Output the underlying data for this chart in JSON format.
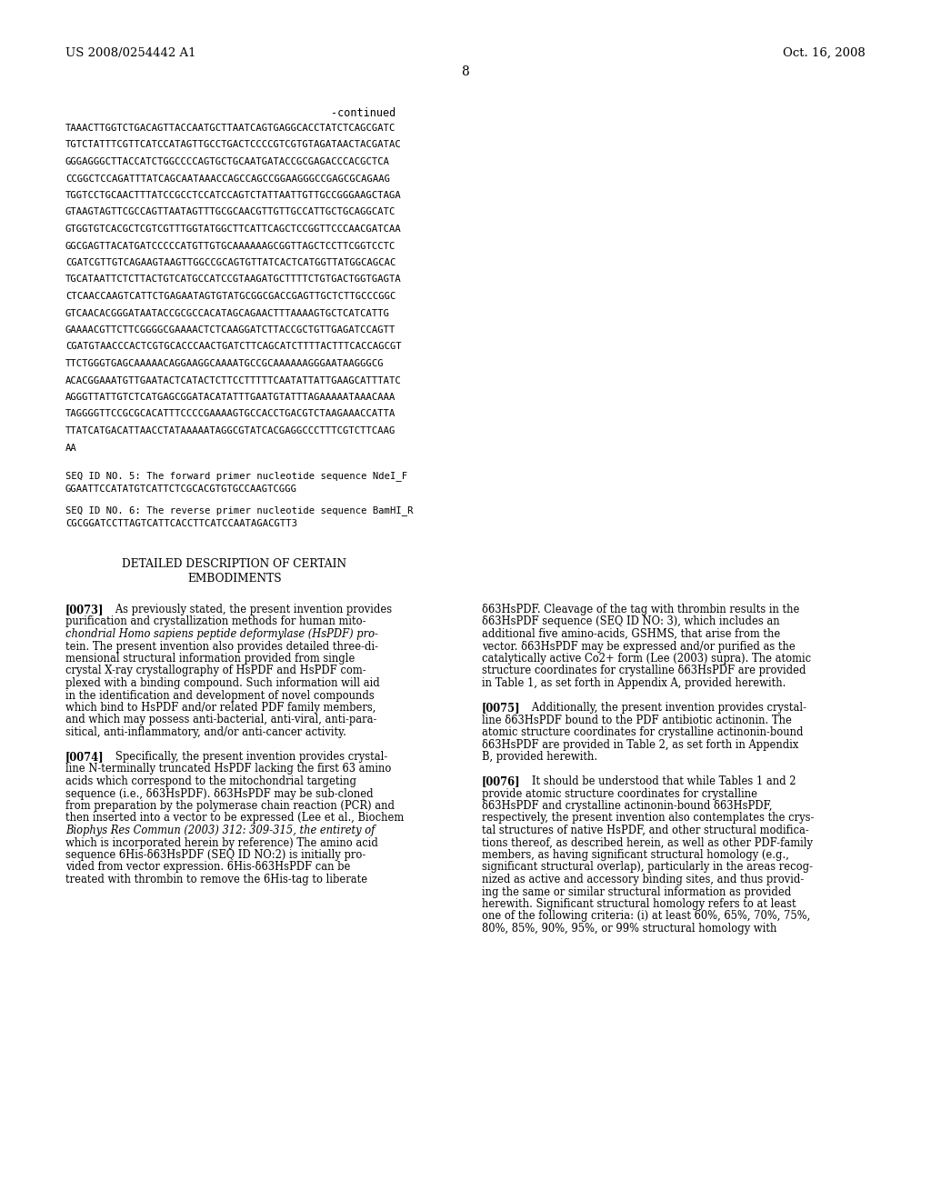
{
  "header_left": "US 2008/0254442 A1",
  "header_right": "Oct. 16, 2008",
  "page_number": "8",
  "continued_label": "-continued",
  "dna_lines": [
    "TAAACTTGGTCTGACAGTTACCAATGCTTAATCAGTGAGGCACCTATCTCAGCGATC",
    "TGTCTATTTCGTTCATCCATAGTTGCCTGACTCCCCGTCGTGTAGATAACTACGATAC",
    "GGGAGGGCTTACCATCTGGCCCCAGTGCTGCAATGATACCGCGAGACCCACGCTCA",
    "CCGGCTCCAGATTTATCAGCAATAAACCAGCCAGCCGGAAGGGCCGAGCGCAGAAG",
    "TGGTCCTGCAACTTTATCCGCCTCCATCCAGTCTATTAATTGTTGCCGGGAAGCTAGA",
    "GTAAGTAGTTCGCCAGTTAATAGTTTGCGCAACGTTGTTGCCATTGCTGCAGGCATC",
    "GTGGTGTCACGCTCGTCGTTTGGTATGGCTTCATTCAGCTCCGGTTCCCAACGATCAA",
    "GGCGAGTTACATGATCCCCCATGTTGTGCAAAAAAGCGGTTAGCTCCTTCGGTCCTC",
    "CGATCGTTGTCAGAAGTAAGTTGGCCGCAGTGTTATCACTCATGGTTATGGCAGCAC",
    "TGCATAATTCTCTTACTGTCATGCCATCCGTAAGATGCTTTTCTGTGACTGGTGAGTA",
    "CTCAACCAAGTCATTCTGAGAATAGTGTATGCGGCGACCGAGTTGCTCTTGCCCGGC",
    "GTCAACACGGGATAATACCGCGCCACATAGCAGAACTTTAAAAGTGCTCATCATTG",
    "GAAAACGTTCTTCGGGGCGAAAACTCTCAAGGATCTTACCGCTGTTGAGATCCAGTT",
    "CGATGTAACCCACTCGTGCACCCAACTGATCTTCAGCATCTTTTACTTTCACCAGCGT",
    "TTCTGGGTGAGCAAAAACAGGAAGGCAAAATGCCGCAAAAAAGGGAATAAGGGCG",
    "ACACGGAAATGTTGAATACTCATACTCTTCCTTTTTCAATATTATTGAAGCATTTATC",
    "AGGGTTATTGTCTCATGAGCGGATACATATTTGAATGTATTTAGAAAAATAAACAAA",
    "TAGGGGTTCCGCGCACATTTCCCCGAAAAGTGCCACCTGACGTCTAAGAAACCATTA",
    "TTATCATGACATTAACCTATAAAAATAGGCGTATCACGAGGCCCTTTCGTCTTCAAG",
    "AA"
  ],
  "seq5_label": "SEQ ID NO. 5: The forward primer nucleotide sequence NdeI_F",
  "seq5_seq": "GGAATTCCATATGTCATTCTCGCACGTGTGCCAAGTCGGG",
  "seq6_label": "SEQ ID NO. 6: The reverse primer nucleotide sequence BamHI_R",
  "seq6_seq": "CGCGGATCCTTAGTCATTCACCTTCATCCAATAGACGTT3",
  "section_title1": "DETAILED DESCRIPTION OF CERTAIN",
  "section_title2": "EMBODIMENTS",
  "left_col_paragraphs": [
    {
      "tag": "[0073]",
      "lines": [
        "As previously stated, the present invention provides",
        "purification and crystallization methods for human mito-",
        "chondrial Homo sapiens peptide deformylase (HsPDF) pro-",
        "tein. The present invention also provides detailed three-di-",
        "mensional structural information provided from single",
        "crystal X-ray crystallography of HsPDF and HsPDF com-",
        "plexed with a binding compound. Such information will aid",
        "in the identification and development of novel compounds",
        "which bind to HsPDF and/or related PDF family members,",
        "and which may possess anti-bacterial, anti-viral, anti-para-",
        "sitical, anti-inflammatory, and/or anti-cancer activity."
      ]
    },
    {
      "tag": "[0074]",
      "lines": [
        "Specifically, the present invention provides crystal-",
        "line N-terminally truncated HsPDF lacking the first 63 amino",
        "acids which correspond to the mitochondrial targeting",
        "sequence (i.e., δ63HsPDF). δ63HsPDF may be sub-cloned",
        "from preparation by the polymerase chain reaction (PCR) and",
        "then inserted into a vector to be expressed (Lee et al., Biochem",
        "Biophys Res Commun (2003) 312: 309-315, the entirety of",
        "which is incorporated herein by reference) The amino acid",
        "sequence 6His-δ63HsPDF (SEQ ID NO:2) is initially pro-",
        "vided from vector expression. 6His-δ63HsPDF can be",
        "treated with thrombin to remove the 6His-tag to liberate"
      ]
    }
  ],
  "right_col_paragraphs": [
    {
      "tag": "",
      "lines": [
        "δ63HsPDF. Cleavage of the tag with thrombin results in the",
        "δ63HsPDF sequence (SEQ ID NO: 3), which includes an",
        "additional five amino-acids, GSHMS, that arise from the",
        "vector. δ63HsPDF may be expressed and/or purified as the",
        "catalytically active Co2+ form (Lee (2003) supra). The atomic",
        "structure coordinates for crystalline δ63HsPDF are provided",
        "in Table 1, as set forth in Appendix A, provided herewith."
      ]
    },
    {
      "tag": "[0075]",
      "lines": [
        "Additionally, the present invention provides crystal-",
        "line δ63HsPDF bound to the PDF antibiotic actinonin. The",
        "atomic structure coordinates for crystalline actinonin-bound",
        "δ63HsPDF are provided in Table 2, as set forth in Appendix",
        "B, provided herewith."
      ]
    },
    {
      "tag": "[0076]",
      "lines": [
        "It should be understood that while Tables 1 and 2",
        "provide atomic structure coordinates for crystalline",
        "δ63HsPDF and crystalline actinonin-bound δ63HsPDF,",
        "respectively, the present invention also contemplates the crys-",
        "tal structures of native HsPDF, and other structural modifica-",
        "tions thereof, as described herein, as well as other PDF-family",
        "members, as having significant structural homology (e.g.,",
        "significant structural overlap), particularly in the areas recog-",
        "nized as active and accessory binding sites, and thus provid-",
        "ing the same or similar structural information as provided",
        "herewith. Significant structural homology refers to at least",
        "one of the following criteria: (i) at least 60%, 65%, 70%, 75%,",
        "80%, 85%, 90%, 95%, or 99% structural homology with"
      ]
    }
  ],
  "background_color": "#ffffff",
  "text_color": "#000000"
}
